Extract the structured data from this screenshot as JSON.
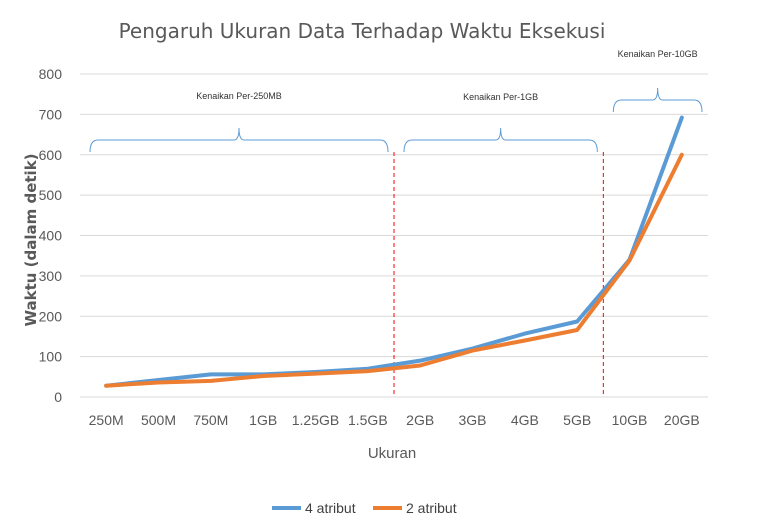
{
  "chart_data": {
    "type": "line",
    "title": "Pengaruh Ukuran Data Terhadap Waktu Eksekusi",
    "xlabel": "Ukuran",
    "ylabel": "Waktu (dalam detik)",
    "categories": [
      "250M",
      "500M",
      "750M",
      "1GB",
      "1.25GB",
      "1.5GB",
      "2GB",
      "3GB",
      "4GB",
      "5GB",
      "10GB",
      "20GB"
    ],
    "ylim": [
      0,
      800
    ],
    "yticks": [
      0,
      100,
      200,
      300,
      400,
      500,
      600,
      700,
      800
    ],
    "grid": true,
    "legend_position": "bottom",
    "series": [
      {
        "name": "4 atribut",
        "color": "#5B9BD5",
        "values": [
          28,
          42,
          56,
          56,
          62,
          70,
          90,
          120,
          157,
          187,
          340,
          692
        ]
      },
      {
        "name": "2 atribut",
        "color": "#ED7D31",
        "values": [
          28,
          36,
          40,
          52,
          58,
          64,
          78,
          115,
          140,
          166,
          338,
          600
        ]
      }
    ],
    "annotations": [
      {
        "text": "Kenaikan Per-250MB",
        "from_index": 0,
        "to_index": 5
      },
      {
        "text": "Kenaikan Per-1GB",
        "from_index": 6,
        "to_index": 9
      },
      {
        "text": "Kenaikan Per-10GB",
        "from_index": 10,
        "to_index": 11
      }
    ],
    "separators_after_index": [
      5,
      9
    ],
    "separator_color": "#FF0000",
    "bracket_color": "#5B9BD5"
  }
}
